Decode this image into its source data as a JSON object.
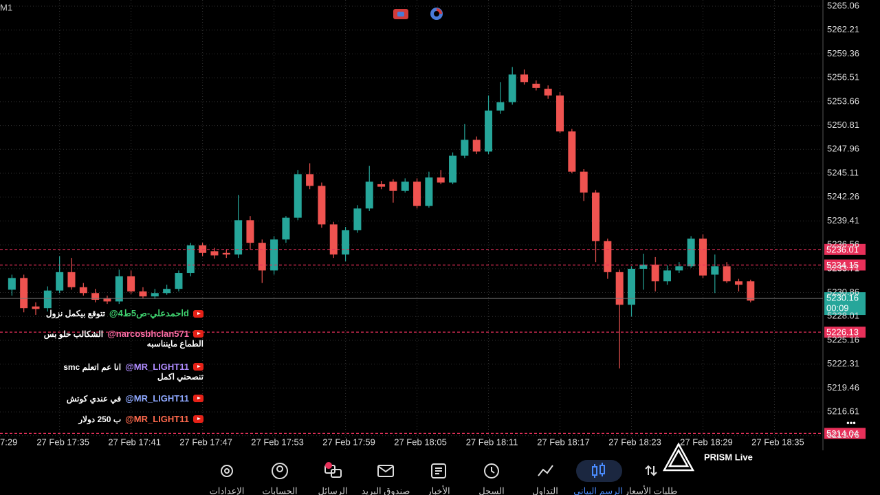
{
  "app": {
    "timeframe": "M1",
    "logo": "PRISM Live"
  },
  "chart_data": {
    "type": "candlestick",
    "ohlc": [
      [
        5231.2,
        5233.0,
        5230.5,
        5232.6
      ],
      [
        5232.6,
        5233.0,
        5228.5,
        5229.0
      ],
      [
        5229.2,
        5229.7,
        5228.2,
        5228.9
      ],
      [
        5229.0,
        5231.6,
        5228.6,
        5231.1
      ],
      [
        5231.1,
        5235.2,
        5230.8,
        5233.3
      ],
      [
        5233.3,
        5235.0,
        5231.2,
        5231.5
      ],
      [
        5231.5,
        5232.0,
        5230.5,
        5230.8
      ],
      [
        5230.8,
        5231.3,
        5229.7,
        5230.0
      ],
      [
        5230.2,
        5230.5,
        5229.5,
        5229.8
      ],
      [
        5229.8,
        5233.6,
        5229.5,
        5232.8
      ],
      [
        5232.8,
        5233.5,
        5230.7,
        5231.0
      ],
      [
        5231.0,
        5231.5,
        5230.2,
        5230.4
      ],
      [
        5230.4,
        5231.3,
        5230.1,
        5230.8
      ],
      [
        5230.8,
        5231.8,
        5230.6,
        5231.3
      ],
      [
        5231.3,
        5233.5,
        5231.0,
        5233.2
      ],
      [
        5233.2,
        5236.8,
        5232.8,
        5236.5
      ],
      [
        5236.5,
        5236.8,
        5235.2,
        5235.6
      ],
      [
        5235.8,
        5236.2,
        5234.9,
        5235.3
      ],
      [
        5235.6,
        5236.0,
        5235.0,
        5235.4
      ],
      [
        5235.4,
        5242.5,
        5235.0,
        5239.5
      ],
      [
        5239.5,
        5240.0,
        5236.0,
        5236.8
      ],
      [
        5236.8,
        5237.2,
        5232.0,
        5233.5
      ],
      [
        5233.5,
        5237.6,
        5233.0,
        5237.2
      ],
      [
        5237.2,
        5240.0,
        5236.8,
        5239.8
      ],
      [
        5239.8,
        5245.5,
        5239.5,
        5245.0
      ],
      [
        5245.0,
        5246.3,
        5243.2,
        5243.6
      ],
      [
        5243.6,
        5244.0,
        5238.6,
        5239.0
      ],
      [
        5239.0,
        5239.3,
        5235.0,
        5235.4
      ],
      [
        5235.4,
        5238.7,
        5234.6,
        5238.3
      ],
      [
        5238.3,
        5241.3,
        5238.0,
        5240.9
      ],
      [
        5240.9,
        5246.0,
        5240.6,
        5244.1
      ],
      [
        5243.8,
        5244.2,
        5243.2,
        5243.5
      ],
      [
        5244.1,
        5244.4,
        5241.6,
        5243.0
      ],
      [
        5243.0,
        5244.5,
        5242.8,
        5244.1
      ],
      [
        5244.1,
        5244.5,
        5240.9,
        5241.2
      ],
      [
        5241.2,
        5245.3,
        5241.0,
        5244.6
      ],
      [
        5244.6,
        5245.5,
        5243.8,
        5244.0
      ],
      [
        5244.0,
        5247.6,
        5243.8,
        5247.2
      ],
      [
        5247.2,
        5251.0,
        5246.9,
        5249.1
      ],
      [
        5249.1,
        5249.5,
        5247.4,
        5247.7
      ],
      [
        5247.7,
        5254.4,
        5247.4,
        5252.6
      ],
      [
        5252.6,
        5256.0,
        5252.2,
        5253.6
      ],
      [
        5253.6,
        5257.8,
        5253.3,
        5256.9
      ],
      [
        5256.9,
        5257.5,
        5255.7,
        5256.0
      ],
      [
        5255.8,
        5256.2,
        5255.0,
        5255.3
      ],
      [
        5255.2,
        5255.6,
        5254.0,
        5254.4
      ],
      [
        5254.4,
        5254.8,
        5249.9,
        5250.1
      ],
      [
        5250.1,
        5250.4,
        5245.1,
        5245.3
      ],
      [
        5245.3,
        5245.6,
        5241.8,
        5242.8
      ],
      [
        5242.8,
        5243.1,
        5234.5,
        5237.0
      ],
      [
        5237.0,
        5237.3,
        5232.5,
        5233.3
      ],
      [
        5233.3,
        5233.6,
        5221.8,
        5229.4
      ],
      [
        5229.4,
        5234.0,
        5228.0,
        5233.7
      ],
      [
        5233.7,
        5235.5,
        5231.2,
        5234.2
      ],
      [
        5234.2,
        5235.1,
        5231.0,
        5232.2
      ],
      [
        5232.2,
        5234.1,
        5231.8,
        5233.5
      ],
      [
        5233.5,
        5234.5,
        5233.2,
        5234.0
      ],
      [
        5234.0,
        5237.6,
        5233.8,
        5237.3
      ],
      [
        5237.3,
        5237.8,
        5232.6,
        5232.9
      ],
      [
        5233.0,
        5235.4,
        5230.8,
        5234.0
      ],
      [
        5234.0,
        5234.5,
        5232.0,
        5232.2
      ],
      [
        5232.2,
        5232.5,
        5231.0,
        5231.8
      ],
      [
        5232.2,
        5232.4,
        5229.7,
        5229.9
      ]
    ],
    "up_color": "#26a69a",
    "down_color": "#ef5350",
    "ylim": [
      5212.02,
      5265.8
    ],
    "yticks": [
      5265.06,
      5262.21,
      5259.36,
      5256.51,
      5253.66,
      5250.81,
      5247.96,
      5245.11,
      5242.26,
      5239.41,
      5236.56,
      5233.71,
      5230.86,
      5228.01,
      5225.16,
      5222.31,
      5219.46,
      5216.61,
      5213.76
    ],
    "xlim": [
      -1,
      68.07
    ],
    "xticks": [
      {
        "value": -2,
        "label": "7:29"
      },
      {
        "value": 4,
        "label": "27 Feb 17:35"
      },
      {
        "value": 10,
        "label": "27 Feb 17:41"
      },
      {
        "value": 16,
        "label": "27 Feb 17:47"
      },
      {
        "value": 22,
        "label": "27 Feb 17:53"
      },
      {
        "value": 28,
        "label": "27 Feb 17:59"
      },
      {
        "value": 34,
        "label": "27 Feb 18:05"
      },
      {
        "value": 40,
        "label": "27 Feb 18:11"
      },
      {
        "value": 46,
        "label": "27 Feb 18:17"
      },
      {
        "value": 52,
        "label": "27 Feb 18:23"
      },
      {
        "value": 58,
        "label": "27 Feb 18:29"
      },
      {
        "value": 64,
        "label": "27 Feb 18:35"
      }
    ],
    "grid": true,
    "levels": [
      5236.01,
      5234.15,
      5226.13,
      5214.04
    ],
    "level_color": "#e8305a",
    "current_price": 5230.16,
    "current_color": "#26a69a",
    "countdown": "00:09"
  },
  "chat": [
    {
      "user": "@احمدعلي-ص5ط4d",
      "color": "#3fd16f",
      "text": [
        "تتوقع بيكمل نزول"
      ]
    },
    {
      "user": "@narcosbhclan571",
      "color": "#ff6fa8",
      "text": [
        "الشكالب حلو بس",
        "الطماع ماينناسبه"
      ]
    },
    {
      "user": "@MR_LIGHT11",
      "color": "#b08cff",
      "text": [
        "انا عم اتعلم smc",
        "تنصحني اكمل"
      ]
    },
    {
      "user": "@MR_LIGHT11",
      "color": "#8ea8ff",
      "text": [
        "في عندي كوتش"
      ]
    },
    {
      "user": "@MR_LIGHT11",
      "color": "#ff6a4d",
      "text": [
        "ب 250 دولار"
      ]
    }
  ],
  "nav": [
    {
      "label": "الإعدادات"
    },
    {
      "label": "الحسابات"
    },
    {
      "label": "الرسائل"
    },
    {
      "label": "صندوق البريد"
    },
    {
      "label": "الأخبار"
    },
    {
      "label": "السجل"
    },
    {
      "label": "التداول"
    },
    {
      "label": "الرسم البياني",
      "active": true
    },
    {
      "label": "طلبات الأسعار"
    }
  ]
}
